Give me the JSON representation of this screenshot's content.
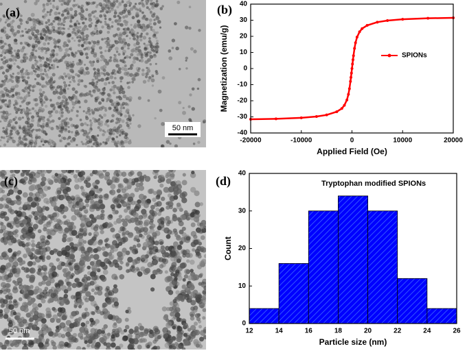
{
  "panels": [
    {
      "label": "(a)",
      "scale_bar": "50 nm"
    },
    {
      "label": "(c)",
      "scale_bar": "50 nm"
    }
  ],
  "chart_data": [
    {
      "type": "line",
      "panel_label": "(b)",
      "xlabel": "Applied Field (Oe)",
      "ylabel": "Magnetization (emu/g)",
      "x": [
        -20000,
        -15000,
        -10000,
        -7000,
        -5000,
        -3000,
        -2000,
        -1500,
        -1000,
        -700,
        -500,
        -300,
        -200,
        -100,
        0,
        100,
        200,
        300,
        500,
        700,
        1000,
        1500,
        2000,
        3000,
        5000,
        7000,
        10000,
        15000,
        20000
      ],
      "series": [
        {
          "name": "SPIONs",
          "color": "#ff0000",
          "values": [
            -31.5,
            -31.2,
            -30.6,
            -29.8,
            -28.8,
            -26.8,
            -24.8,
            -22.8,
            -19.5,
            -16,
            -12.5,
            -8,
            -5.5,
            -2.8,
            0,
            2.8,
            5.5,
            8,
            12.5,
            16,
            19.5,
            22.8,
            24.8,
            26.8,
            28.8,
            29.8,
            30.6,
            31.2,
            31.5
          ]
        }
      ],
      "xlim": [
        -20000,
        20000
      ],
      "xticks": [
        -20000,
        -10000,
        0,
        10000,
        20000
      ],
      "ylim": [
        -40,
        40
      ],
      "yticks": [
        -40,
        -30,
        -20,
        -10,
        0,
        10,
        20,
        30,
        40
      ],
      "legend": "right"
    },
    {
      "type": "histogram",
      "panel_label": "(d)",
      "annotation": "Tryptophan modified SPIONs",
      "xlabel": "Particle size (nm)",
      "ylabel": "Count",
      "bins": [
        12,
        14,
        16,
        18,
        20,
        22,
        24,
        26
      ],
      "values": [
        4,
        16,
        30,
        34,
        30,
        12,
        4
      ],
      "color": "#0000ff",
      "xlim": [
        12,
        26
      ],
      "xticks": [
        12,
        14,
        16,
        18,
        20,
        22,
        24,
        26
      ],
      "ylim": [
        0,
        40
      ],
      "yticks": [
        0,
        10,
        20,
        30,
        40
      ]
    }
  ]
}
